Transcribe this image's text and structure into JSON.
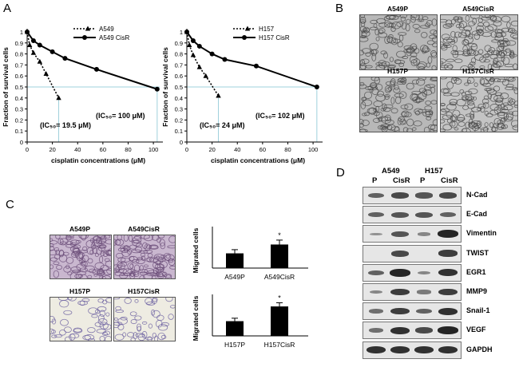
{
  "panel_labels": {
    "A": "A",
    "B": "B",
    "C": "C",
    "D": "D"
  },
  "chart_data": [
    {
      "type": "line",
      "xlabel": "cisplatin concentrations (μM)",
      "ylabel": "Fraction of survival cells",
      "xlim": [
        0,
        105
      ],
      "ylim": [
        0,
        1
      ],
      "yticks": [
        "0",
        "0.1",
        "0.2",
        "0.3",
        "0.4",
        "0.5",
        "0.6",
        "0.7",
        "0.8",
        "0.9",
        "1"
      ],
      "xticks": [
        "0",
        "20",
        "40",
        "60",
        "80",
        "100"
      ],
      "series": [
        {
          "name": "A549",
          "style": "dotted-triangle",
          "x": [
            0,
            2,
            5,
            10,
            15,
            25
          ],
          "y": [
            1.0,
            0.88,
            0.81,
            0.73,
            0.62,
            0.4
          ]
        },
        {
          "name": "A549 CisR",
          "style": "solid-circle",
          "x": [
            0,
            5,
            10,
            20,
            30,
            55,
            103
          ],
          "y": [
            1.0,
            0.92,
            0.88,
            0.82,
            0.76,
            0.66,
            0.48
          ]
        }
      ],
      "annotations": {
        "ic50_sensitive": "(IC₅₀= 19.5 μM)",
        "ic50_resistant": "(IC₅₀= 100 μM)"
      }
    },
    {
      "type": "line",
      "xlabel": "cisplatin concentrations (μM)",
      "ylabel": "Fraction of survival cells",
      "xlim": [
        0,
        105
      ],
      "ylim": [
        0,
        1
      ],
      "yticks": [
        "0",
        "0.1",
        "0.2",
        "0.3",
        "0.4",
        "0.5",
        "0.6",
        "0.7",
        "0.8",
        "0.9",
        "1"
      ],
      "xticks": [
        "0",
        "20",
        "40",
        "60",
        "80",
        "100"
      ],
      "series": [
        {
          "name": "H157",
          "style": "dotted-triangle",
          "x": [
            0,
            2,
            5,
            10,
            15,
            25
          ],
          "y": [
            1.0,
            0.88,
            0.79,
            0.68,
            0.6,
            0.42
          ]
        },
        {
          "name": "H157 CisR",
          "style": "solid-circle",
          "x": [
            0,
            5,
            10,
            20,
            30,
            55,
            103
          ],
          "y": [
            1.0,
            0.92,
            0.87,
            0.8,
            0.75,
            0.69,
            0.5
          ]
        }
      ],
      "annotations": {
        "ic50_sensitive": "(IC₅₀= 24 μM)",
        "ic50_resistant": "(IC₅₀= 102 μM)"
      }
    },
    {
      "type": "bar",
      "ylabel": "Migrated cells",
      "categories": [
        "A549P",
        "A549CisR"
      ],
      "values": [
        1.0,
        1.6
      ],
      "errors": [
        0.25,
        0.3
      ],
      "significance": [
        "",
        "*"
      ]
    },
    {
      "type": "bar",
      "ylabel": "Migrated cells",
      "categories": [
        "H157P",
        "H157CisR"
      ],
      "values": [
        1.0,
        2.0
      ],
      "errors": [
        0.2,
        0.25
      ],
      "significance": [
        "",
        "*"
      ]
    }
  ],
  "panel_b": {
    "images": [
      {
        "label": "A549P"
      },
      {
        "label": "A549CisR"
      },
      {
        "label": "H157P"
      },
      {
        "label": "H157CisR"
      }
    ]
  },
  "panel_c": {
    "images": [
      {
        "label": "A549P"
      },
      {
        "label": "A549CisR"
      },
      {
        "label": "H157P"
      },
      {
        "label": "H157CisR"
      }
    ]
  },
  "panel_d": {
    "groups": [
      "A549",
      "H157"
    ],
    "lanes": [
      "P",
      "CisR",
      "P",
      "CisR"
    ],
    "proteins": [
      {
        "name": "N-Cad",
        "levels": [
          0.5,
          0.7,
          0.6,
          0.7
        ]
      },
      {
        "name": "E-Cad",
        "levels": [
          0.5,
          0.6,
          0.6,
          0.5
        ]
      },
      {
        "name": "Vimentin",
        "levels": [
          0.1,
          0.6,
          0.2,
          1.0
        ]
      },
      {
        "name": "TWIST",
        "levels": [
          0.0,
          0.7,
          0.0,
          0.8
        ]
      },
      {
        "name": "EGR1",
        "levels": [
          0.5,
          1.0,
          0.2,
          0.9
        ]
      },
      {
        "name": "MMP9",
        "levels": [
          0.2,
          0.8,
          0.3,
          0.8
        ]
      },
      {
        "name": "Snail-1",
        "levels": [
          0.4,
          0.8,
          0.5,
          0.9
        ]
      },
      {
        "name": "VEGF",
        "levels": [
          0.4,
          0.9,
          0.7,
          1.0
        ]
      },
      {
        "name": "GAPDH",
        "levels": [
          0.9,
          0.9,
          0.9,
          0.9
        ]
      }
    ]
  }
}
